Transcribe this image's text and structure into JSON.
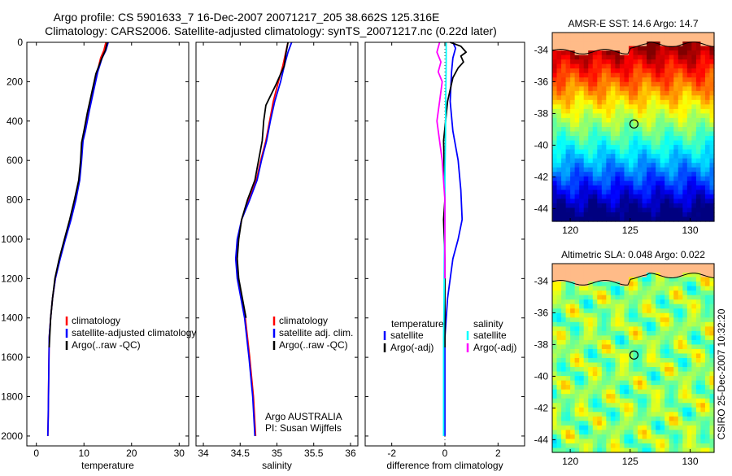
{
  "title_line1": "Argo profile: CS 5901633_7 16-Dec-2007 20071217_205 38.662S 125.316E",
  "title_line2": "Climatology: CARS2006. Satellite-adjusted climatology: synTS_20071217.nc (0.22d later)",
  "side_label": "CSIRO 25-Dec-2007 10:32:20",
  "colors": {
    "red": "#ff0000",
    "blue": "#0000ff",
    "black": "#000000",
    "cyan": "#00ffff",
    "magenta": "#ff00ff",
    "land": "#ffbb88"
  },
  "chart_data": [
    {
      "type": "line",
      "panel": "temperature",
      "xlabel": "temperature",
      "xlim": [
        -2,
        32
      ],
      "ylim": [
        0,
        2050
      ],
      "xticks": [
        "0",
        "10",
        "20",
        "30"
      ],
      "xtick_values": [
        0,
        10,
        20,
        30
      ],
      "yticks": [
        "0",
        "200",
        "400",
        "600",
        "800",
        "1000",
        "1200",
        "1400",
        "1600",
        "1800",
        "2000"
      ],
      "ytick_values": [
        0,
        200,
        400,
        600,
        800,
        1000,
        1200,
        1400,
        1600,
        1800,
        2000
      ],
      "legend": [
        "climatology",
        "satellite-adjusted climatology",
        "Argo(..raw -QC)"
      ],
      "series": [
        {
          "name": "climatology",
          "color": "red",
          "x": [
            14.6,
            14.2,
            13.5,
            12.8,
            11.9,
            11.0,
            10.2,
            9.7,
            9.4,
            9.0,
            8.2,
            7.2,
            6.0,
            4.9,
            4.0,
            3.4,
            3.0,
            2.7,
            2.6,
            2.5,
            2.4
          ],
          "y": [
            0,
            40,
            80,
            150,
            250,
            350,
            450,
            500,
            600,
            700,
            800,
            900,
            1000,
            1100,
            1200,
            1300,
            1400,
            1500,
            1700,
            1900,
            2000
          ]
        },
        {
          "name": "satellite-adjusted climatology",
          "color": "blue",
          "x": [
            15.1,
            14.6,
            13.8,
            12.9,
            12.0,
            11.1,
            10.3,
            9.8,
            9.5,
            9.1,
            8.3,
            7.3,
            6.1,
            5.0,
            4.0,
            3.4,
            3.0,
            2.7,
            2.6,
            2.5,
            2.4
          ],
          "y": [
            0,
            40,
            80,
            150,
            250,
            350,
            450,
            500,
            600,
            700,
            800,
            900,
            1000,
            1100,
            1200,
            1300,
            1400,
            1500,
            1700,
            1900,
            2000
          ]
        },
        {
          "name": "Argo(..raw -QC)",
          "color": "black",
          "x": [
            14.9,
            14.5,
            13.6,
            12.5,
            11.6,
            10.7,
            10.0,
            9.5,
            9.3,
            8.9,
            8.0,
            7.0,
            5.9,
            4.8,
            3.9,
            3.4,
            3.0,
            2.7
          ],
          "y": [
            0,
            40,
            90,
            160,
            260,
            360,
            450,
            510,
            600,
            700,
            800,
            900,
            1000,
            1100,
            1200,
            1300,
            1400,
            1550
          ]
        }
      ]
    },
    {
      "type": "line",
      "panel": "salinity",
      "xlabel": "salinity",
      "xlim": [
        33.9,
        36.1
      ],
      "ylim": [
        0,
        2050
      ],
      "xticks": [
        "34",
        "34.5",
        "35",
        "35.5",
        "36"
      ],
      "xtick_values": [
        34,
        34.5,
        35,
        35.5,
        36
      ],
      "legend": [
        "climatology",
        "satellite adj. clim.",
        "Argo(..raw -QC)"
      ],
      "annotation": [
        "Argo AUSTRALIA",
        "PI: Susan Wijffels"
      ],
      "series": [
        {
          "name": "climatology",
          "color": "red",
          "x": [
            35.15,
            35.12,
            35.08,
            35.02,
            34.95,
            34.9,
            34.85,
            34.78,
            34.72,
            34.62,
            34.52,
            34.47,
            34.45,
            34.47,
            34.52,
            34.57,
            34.63,
            34.68,
            34.71
          ],
          "y": [
            0,
            50,
            120,
            200,
            300,
            400,
            500,
            600,
            700,
            800,
            900,
            1000,
            1100,
            1200,
            1300,
            1400,
            1600,
            1800,
            2000
          ]
        },
        {
          "name": "satellite adj. clim.",
          "color": "blue",
          "x": [
            35.2,
            35.15,
            35.1,
            35.05,
            34.97,
            34.91,
            34.86,
            34.79,
            34.73,
            34.63,
            34.52,
            34.46,
            34.44,
            34.46,
            34.51,
            34.56,
            34.62,
            34.67,
            34.7
          ],
          "y": [
            0,
            50,
            120,
            200,
            300,
            400,
            500,
            600,
            700,
            800,
            900,
            1000,
            1100,
            1200,
            1300,
            1400,
            1600,
            1800,
            2000
          ]
        },
        {
          "name": "Argo(..raw -QC)",
          "color": "black",
          "x": [
            35.15,
            35.12,
            35.1,
            34.98,
            34.85,
            34.82,
            34.8,
            34.75,
            34.7,
            34.6,
            34.52,
            34.48,
            34.46,
            34.48,
            34.53,
            34.58
          ],
          "y": [
            0,
            60,
            120,
            220,
            320,
            400,
            500,
            600,
            700,
            800,
            900,
            1000,
            1100,
            1200,
            1300,
            1400
          ]
        }
      ]
    },
    {
      "type": "line",
      "panel": "difference",
      "xlabel": "difference from climatology",
      "xlim": [
        -3,
        3
      ],
      "ylim": [
        0,
        2050
      ],
      "xticks": [
        "-2",
        "0",
        "2"
      ],
      "xtick_values": [
        -2,
        0,
        2
      ],
      "legend_header": [
        "temperature",
        "salinity"
      ],
      "legend": [
        "satellite",
        "Argo(-adj)",
        "satellite",
        "Argo(-adj)"
      ],
      "series": [
        {
          "name": "temperature satellite",
          "color": "blue",
          "x": [
            0.3,
            0.4,
            0.3,
            0.25,
            0.2,
            0.3,
            0.5,
            0.6,
            0.65,
            0.5,
            0.3,
            0.1,
            0.0,
            0.0,
            0.0
          ],
          "y": [
            0,
            30,
            80,
            150,
            300,
            450,
            600,
            750,
            900,
            1000,
            1100,
            1300,
            1500,
            1800,
            2000
          ]
        },
        {
          "name": "temperature Argo(-adj)",
          "color": "black",
          "x": [
            0.2,
            0.6,
            0.8,
            0.6,
            0.7,
            0.5,
            0.3,
            0.1,
            -0.05,
            0.0,
            -0.05,
            0.0,
            0.0,
            0.0,
            0.0
          ],
          "y": [
            0,
            20,
            50,
            70,
            100,
            130,
            180,
            300,
            500,
            800,
            900,
            1100,
            1200,
            1400,
            1550
          ]
        },
        {
          "name": "salinity satellite",
          "color": "cyan",
          "x": [
            0.05,
            0.05,
            0.03,
            0.02,
            0.0,
            0.0,
            -0.02,
            -0.03,
            -0.05,
            -0.05,
            -0.05,
            -0.05
          ],
          "y": [
            0,
            100,
            300,
            500,
            700,
            900,
            1100,
            1300,
            1500,
            1700,
            1900,
            2000
          ]
        },
        {
          "name": "salinity Argo(-adj)",
          "color": "magenta",
          "x": [
            -0.2,
            -0.3,
            -0.15,
            -0.25,
            -0.1,
            -0.2,
            -0.3,
            -0.1,
            0.0,
            0.0,
            0.0
          ],
          "y": [
            0,
            50,
            100,
            150,
            200,
            300,
            400,
            600,
            800,
            1000,
            1200
          ]
        }
      ]
    },
    {
      "type": "heatmap",
      "panel": "sst-map",
      "title": "AMSR-E SST: 14.6 Argo: 14.7",
      "xticks": [
        "120",
        "125",
        "130"
      ],
      "xtick_values": [
        120,
        125,
        130
      ],
      "yticks": [
        "-34",
        "-36",
        "-38",
        "-40",
        "-42",
        "-44"
      ],
      "ytick_values": [
        -34,
        -36,
        -38,
        -40,
        -42,
        -44
      ],
      "xlim": [
        118.5,
        132
      ],
      "ylim": [
        -44.8,
        -32.9
      ],
      "profile_location": {
        "lon": 125.316,
        "lat": -38.662
      }
    },
    {
      "type": "heatmap",
      "panel": "sla-map",
      "title": "Altimetric SLA: 0.048 Argo: 0.022",
      "xticks": [
        "120",
        "125",
        "130"
      ],
      "xtick_values": [
        120,
        125,
        130
      ],
      "yticks": [
        "-34",
        "-36",
        "-38",
        "-40",
        "-42",
        "-44"
      ],
      "ytick_values": [
        -34,
        -36,
        -38,
        -40,
        -42,
        -44
      ],
      "xlim": [
        118.5,
        132
      ],
      "ylim": [
        -44.8,
        -32.9
      ],
      "profile_location": {
        "lon": 125.316,
        "lat": -38.662
      }
    }
  ]
}
